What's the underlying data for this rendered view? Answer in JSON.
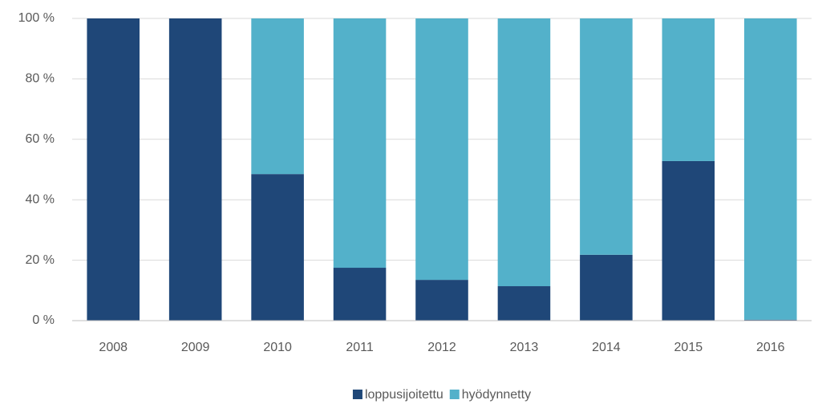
{
  "chart_data": {
    "type": "stacked_bar",
    "categories": [
      "2008",
      "2009",
      "2010",
      "2011",
      "2012",
      "2013",
      "2014",
      "2015",
      "2016"
    ],
    "series": [
      {
        "name": "loppusijoitettu",
        "color": "#1f4778",
        "values": [
          100,
          100,
          48.5,
          17.5,
          13.5,
          11.4,
          21.8,
          52.8,
          0.3
        ]
      },
      {
        "name": "hyödynnetty",
        "color": "#53b1ca",
        "values": [
          0,
          0,
          51.5,
          82.5,
          86.5,
          88.6,
          78.2,
          47.2,
          99.7
        ]
      }
    ],
    "ylim": [
      0,
      100
    ],
    "yticks": [
      {
        "value": 0,
        "label": "0 %"
      },
      {
        "value": 20,
        "label": "20 %"
      },
      {
        "value": 40,
        "label": "40 %"
      },
      {
        "value": 60,
        "label": "60 %"
      },
      {
        "value": 80,
        "label": "80 %"
      },
      {
        "value": 100,
        "label": "100 %"
      }
    ],
    "grid": true,
    "legend": "bottom"
  }
}
